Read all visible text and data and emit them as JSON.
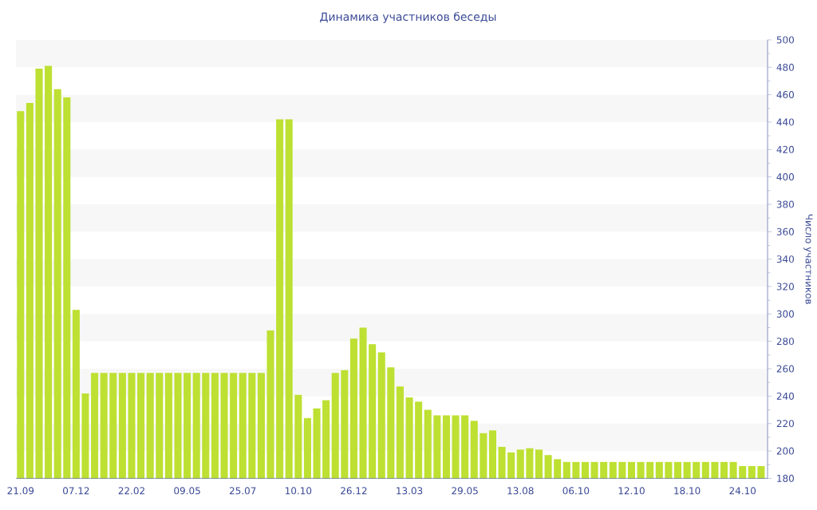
{
  "chart_data": {
    "type": "bar",
    "title": "Динамика участников беседы",
    "ylabel": "Число участников",
    "categories": [
      "21.09",
      null,
      null,
      null,
      null,
      null,
      "07.12",
      null,
      null,
      null,
      null,
      null,
      "22.02",
      null,
      null,
      null,
      null,
      null,
      "09.05",
      null,
      null,
      null,
      null,
      null,
      "25.07",
      null,
      null,
      null,
      null,
      null,
      "10.10",
      null,
      null,
      null,
      null,
      null,
      "26.12",
      null,
      null,
      null,
      null,
      null,
      "13.03",
      null,
      null,
      null,
      null,
      null,
      "29.05",
      null,
      null,
      null,
      null,
      null,
      "13.08",
      null,
      null,
      null,
      null,
      null,
      "06.10",
      null,
      null,
      null,
      null,
      null,
      "12.10",
      null,
      null,
      null,
      null,
      null,
      "18.10",
      null,
      null,
      null,
      null,
      null,
      "24.10",
      null,
      null
    ],
    "values": [
      448,
      454,
      479,
      481,
      464,
      458,
      303,
      242,
      257,
      257,
      257,
      257,
      257,
      257,
      257,
      257,
      257,
      257,
      257,
      257,
      257,
      257,
      257,
      257,
      257,
      257,
      257,
      288,
      442,
      442,
      241,
      224,
      231,
      237,
      257,
      259,
      282,
      290,
      278,
      272,
      261,
      247,
      239,
      236,
      230,
      226,
      226,
      226,
      226,
      222,
      213,
      215,
      203,
      199,
      201,
      202,
      201,
      197,
      194,
      192,
      192,
      192,
      192,
      192,
      192,
      192,
      192,
      192,
      192,
      192,
      192,
      192,
      192,
      192,
      192,
      192,
      192,
      192,
      189,
      189,
      189
    ],
    "color": "#bde032",
    "ylim": [
      180,
      500
    ],
    "yticks": [
      180,
      200,
      220,
      240,
      260,
      280,
      300,
      320,
      340,
      360,
      380,
      400,
      420,
      440,
      460,
      480,
      500
    ],
    "bands": [
      {
        "axis": "y",
        "from": 480,
        "to": 500,
        "color": "#f7f7f7"
      },
      {
        "axis": "y",
        "from": 440,
        "to": 460,
        "color": "#f7f7f7"
      },
      {
        "axis": "y",
        "from": 400,
        "to": 420,
        "color": "#f7f7f7"
      },
      {
        "axis": "y",
        "from": 360,
        "to": 380,
        "color": "#f7f7f7"
      },
      {
        "axis": "y",
        "from": 320,
        "to": 340,
        "color": "#f7f7f7"
      },
      {
        "axis": "y",
        "from": 280,
        "to": 300,
        "color": "#f7f7f7"
      },
      {
        "axis": "y",
        "from": 240,
        "to": 260,
        "color": "#f7f7f7"
      },
      {
        "axis": "y",
        "from": 200,
        "to": 220,
        "color": "#f7f7f7"
      }
    ]
  }
}
